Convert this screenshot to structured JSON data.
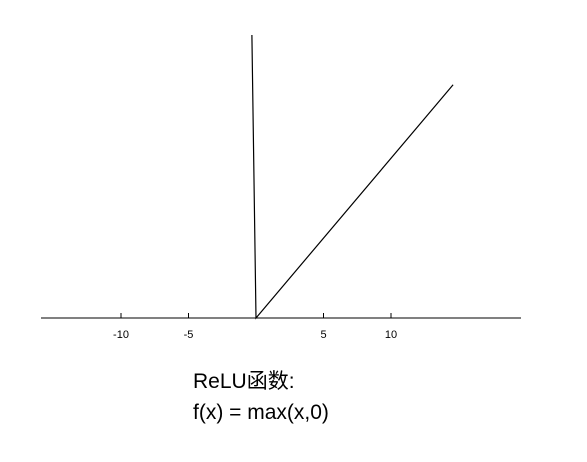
{
  "caption": {
    "title": "ReLU函数:",
    "formula": "f(x) = max(x,0)"
  },
  "chart_data": {
    "type": "line",
    "title": "ReLU函数:",
    "subtitle": "f(x) = max(x,0)",
    "xlabel": "",
    "ylabel": "",
    "xlim": [
      -16,
      20
    ],
    "x_ticks": [
      -10,
      -5,
      5,
      10
    ],
    "grid": false,
    "legend": "none",
    "series": [
      {
        "points": [
          {
            "x": -0.3,
            "y": 21.6
          },
          {
            "x": 0,
            "y": 0
          },
          {
            "x": 14.6,
            "y": 17.8
          }
        ]
      }
    ]
  },
  "colors": {
    "line": "#000000",
    "axis": "#000000",
    "background": "#ffffff"
  }
}
